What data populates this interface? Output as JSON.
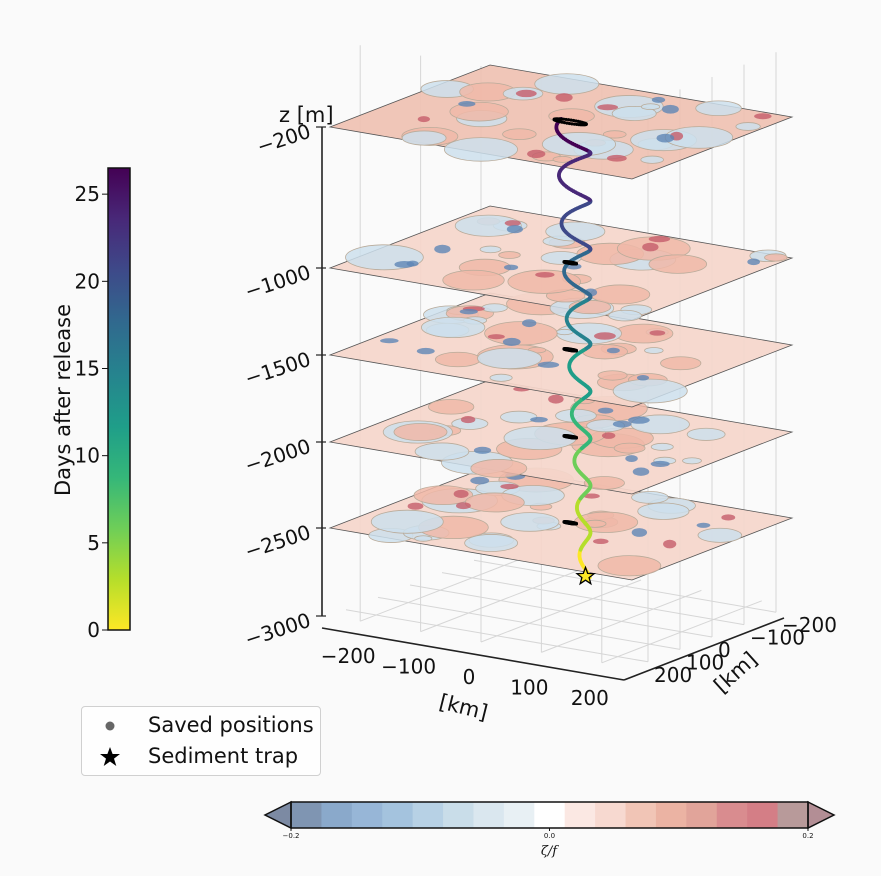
{
  "chart_data": {
    "type": "scatter",
    "subtype": "3d-particle-trajectory-with-vorticity-slices",
    "axes": {
      "x": {
        "label": "[km]",
        "ticks": [
          "−200",
          "−100",
          "0",
          "100",
          "200"
        ],
        "range": [
          -250,
          250
        ]
      },
      "y": {
        "label": "[km]",
        "ticks": [
          "−200",
          "−100",
          "0",
          "100",
          "200"
        ],
        "range": [
          -250,
          250
        ]
      },
      "z": {
        "label": "z [m]",
        "ticks": [
          "−200",
          "−1000",
          "−1500",
          "−2000",
          "−2500",
          "−3000"
        ]
      }
    },
    "slice_depths_m": [
      -200,
      -1000,
      -1500,
      -2000,
      -2500
    ],
    "trajectory": {
      "color_variable": "Days after release",
      "days_range": [
        0,
        26
      ],
      "start_depth_m": -2800,
      "end_depth_m": -200
    },
    "colorbar_days": {
      "label": "Days after release",
      "ticks": [
        "0",
        "5",
        "10",
        "15",
        "20",
        "25"
      ],
      "range": [
        0,
        26.5
      ],
      "colormap": "viridis"
    },
    "colorbar_vorticity": {
      "label": "ζ/f",
      "ticks": [
        "−0.2",
        "0.0",
        "0.2"
      ],
      "range": [
        -0.2,
        0.2
      ],
      "colormap": "balance",
      "extend": "both"
    },
    "legend": {
      "placement": "lower-left",
      "entries": [
        {
          "label": "Saved positions",
          "marker": "dot"
        },
        {
          "label": "Sediment trap",
          "marker": "star"
        }
      ]
    },
    "grid": true
  },
  "legend": {
    "saved_positions": "Saved positions",
    "sediment_trap": "Sediment trap"
  },
  "labels": {
    "z_axis": "z [m]",
    "x_axis": "[km]",
    "y_axis": "[km]",
    "days_cbar": "Days after release",
    "vort_cbar": "ζ/f"
  },
  "colors": {
    "vort_cbar_levels": [
      "#7f95b2",
      "#8aa9cb",
      "#97b6d7",
      "#a4c3de",
      "#b7d1e5",
      "#c9dde9",
      "#dae7ef",
      "#e8f0f4",
      "#ffffff",
      "#fbe8e3",
      "#f7d9d0",
      "#f1c5b6",
      "#ebb3a3",
      "#e1a49a",
      "#d98c8f",
      "#d47e86",
      "#b89a9a"
    ],
    "slice_pos": "#f2c6b8",
    "slice_neg": "#cddfec",
    "contour": "#b9ab9a",
    "viridis": [
      "#440154",
      "#482878",
      "#3e4989",
      "#31688e",
      "#26828e",
      "#1f9e89",
      "#35b779",
      "#6ece58",
      "#b5de2b",
      "#fde725"
    ]
  }
}
